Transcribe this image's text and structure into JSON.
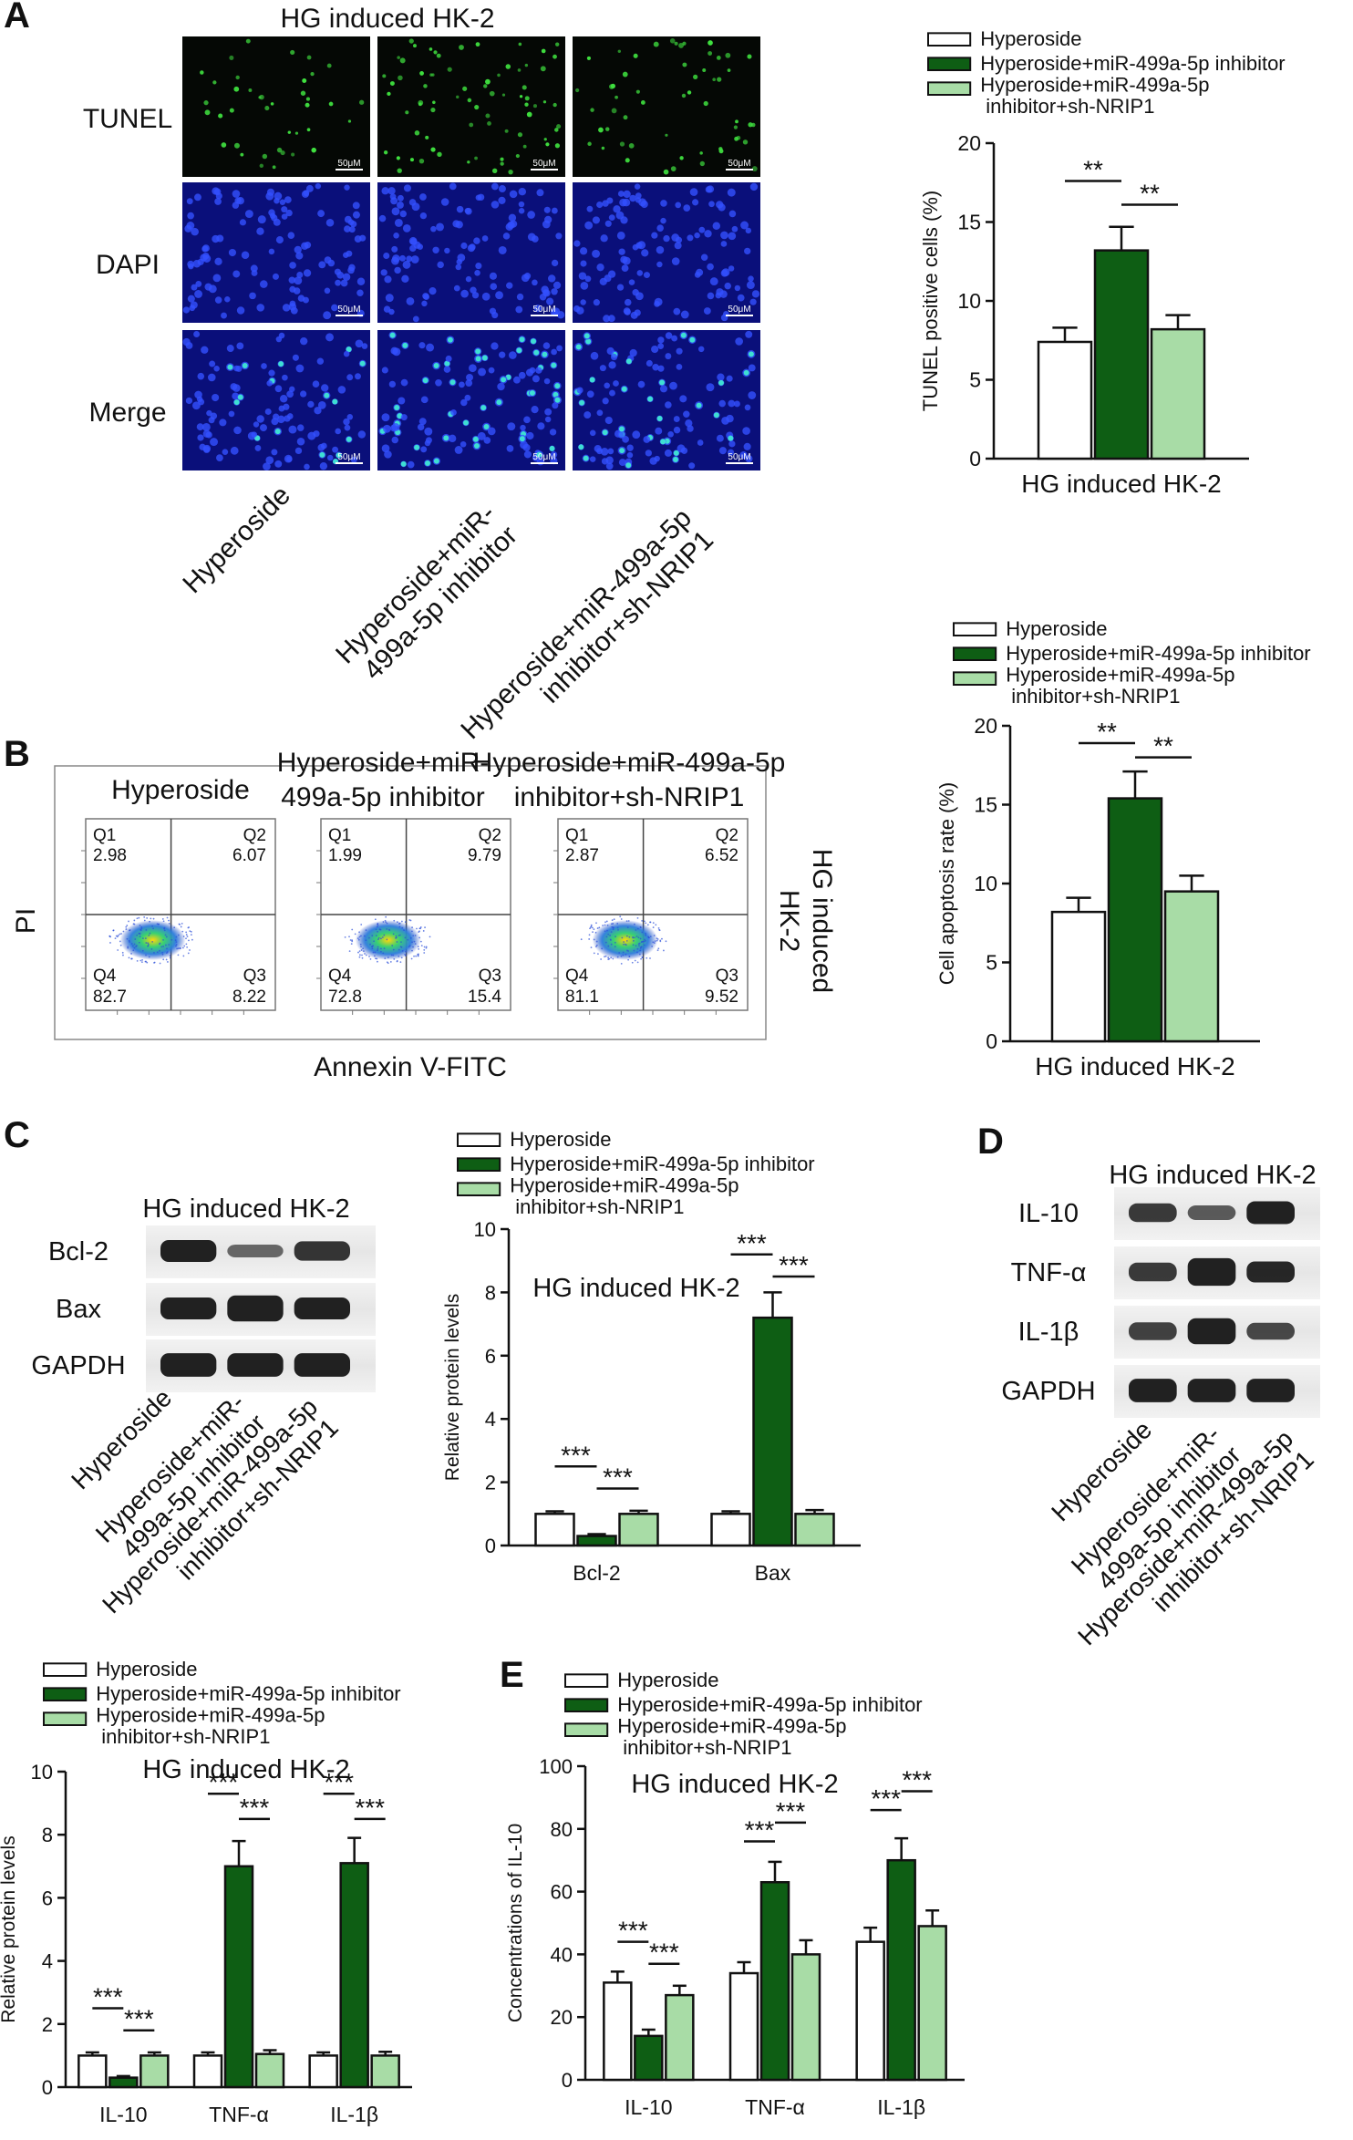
{
  "colors": {
    "hyperoside": "#ffffff",
    "inhibitor": "#0e5e14",
    "sh": "#a8dca6",
    "outline": "#111111"
  },
  "legend": {
    "hyperoside": "Hyperoside",
    "inhibitor": "Hyperoside+miR-499a-5p inhibitor",
    "sh_line1": "Hyperoside+miR-499a-5p",
    "sh_line2": "inhibitor+sh-NRIP1"
  },
  "panelA": {
    "letter": "A",
    "title": "HG induced HK-2",
    "rows": [
      "TUNEL",
      "DAPI",
      "Merge"
    ],
    "scalebar": "50μM",
    "groups": [
      {
        "lines": [
          "Hyperoside"
        ]
      },
      {
        "lines": [
          "Hyperoside+miR-",
          "499a-5p inhibitor"
        ]
      },
      {
        "lines": [
          "Hyperoside+miR-499a-5p",
          "inhibitor+sh-NRIP1"
        ]
      }
    ]
  },
  "panelB": {
    "letter": "B",
    "side_label_line1": "HG induced",
    "side_label_line2": "HK-2",
    "ylabel": "PI",
    "xlabel": "Annexin V-FITC",
    "plots": [
      {
        "title_lines": [
          "Hyperoside"
        ],
        "q1": "2.98",
        "q2": "6.07",
        "q3": "8.22",
        "q4": "82.7"
      },
      {
        "title_lines": [
          "Hyperoside+miR-",
          "499a-5p inhibitor"
        ],
        "q1": "1.99",
        "q2": "9.79",
        "q3": "15.4",
        "q4": "72.8"
      },
      {
        "title_lines": [
          "Hyperoside+miR-499a-5p",
          "inhibitor+sh-NRIP1"
        ],
        "q1": "2.87",
        "q2": "6.52",
        "q3": "9.52",
        "q4": "81.1"
      }
    ],
    "quadrants": {
      "q1": "Q1",
      "q2": "Q2",
      "q3": "Q3",
      "q4": "Q4"
    }
  },
  "panelC": {
    "letter": "C",
    "blot_title": "HG induced HK-2",
    "bands": [
      "Bcl-2",
      "Bax",
      "GAPDH"
    ],
    "lanes": [
      "Hyperoside",
      "Hyperoside+miR-|499a-5p inhibitor",
      "Hyperoside+miR-499a-5p|inhibitor+sh-NRIP1"
    ]
  },
  "panelD": {
    "letter": "D",
    "blot_title": "HG induced HK-2",
    "bands": [
      "IL-10",
      "TNF-α",
      "IL-1β",
      "GAPDH"
    ],
    "lanes": [
      "Hyperoside",
      "Hyperoside+miR-|499a-5p inhibitor",
      "Hyperoside+miR-499a-5p|inhibitor+sh-NRIP1"
    ]
  },
  "panelE": {
    "letter": "E"
  },
  "chart_data": [
    {
      "id": "tunel",
      "type": "bar",
      "ylabel": "TUNEL positive cells (%)",
      "xlabel": "HG induced HK-2",
      "ylim": [
        0,
        20
      ],
      "ticks": [
        0,
        5,
        10,
        15,
        20
      ],
      "categories": [
        ""
      ],
      "series": [
        {
          "name": "Hyperoside",
          "values": [
            7.4
          ],
          "errors": [
            0.9
          ]
        },
        {
          "name": "Hyperoside+miR-499a-5p inhibitor",
          "values": [
            13.2
          ],
          "errors": [
            1.5
          ]
        },
        {
          "name": "Hyperoside+miR-499a-5p inhibitor+sh-NRIP1",
          "values": [
            8.2
          ],
          "errors": [
            0.9
          ]
        }
      ],
      "significance": [
        {
          "cat": 0,
          "from": 0,
          "to": 1,
          "label": "**",
          "y": 17.6
        },
        {
          "cat": 0,
          "from": 1,
          "to": 2,
          "label": "**",
          "y": 16.1
        }
      ]
    },
    {
      "id": "apoptosis",
      "type": "bar",
      "ylabel": "Cell apoptosis rate (%)",
      "xlabel": "HG induced HK-2",
      "ylim": [
        0,
        20
      ],
      "ticks": [
        0,
        5,
        10,
        15,
        20
      ],
      "categories": [
        ""
      ],
      "series": [
        {
          "name": "Hyperoside",
          "values": [
            8.2
          ],
          "errors": [
            0.9
          ]
        },
        {
          "name": "Hyperoside+miR-499a-5p inhibitor",
          "values": [
            15.4
          ],
          "errors": [
            1.7
          ]
        },
        {
          "name": "Hyperoside+miR-499a-5p inhibitor+sh-NRIP1",
          "values": [
            9.5
          ],
          "errors": [
            1.0
          ]
        }
      ],
      "significance": [
        {
          "cat": 0,
          "from": 0,
          "to": 1,
          "label": "**",
          "y": 18.9
        },
        {
          "cat": 0,
          "from": 1,
          "to": 2,
          "label": "**",
          "y": 18.0
        }
      ]
    },
    {
      "id": "c_protein",
      "type": "bar",
      "title": "HG induced HK-2",
      "ylabel": "Relative protein levels",
      "xlabel": "",
      "ylim": [
        0,
        10
      ],
      "ticks": [
        0,
        2,
        4,
        6,
        8,
        10
      ],
      "categories": [
        "Bcl-2",
        "Bax"
      ],
      "series": [
        {
          "name": "Hyperoside",
          "values": [
            1.0,
            1.0
          ],
          "errors": [
            0.08,
            0.08
          ]
        },
        {
          "name": "Hyperoside+miR-499a-5p inhibitor",
          "values": [
            0.3,
            7.2
          ],
          "errors": [
            0.06,
            0.8
          ]
        },
        {
          "name": "Hyperoside+miR-499a-5p inhibitor+sh-NRIP1",
          "values": [
            1.0,
            1.0
          ],
          "errors": [
            0.1,
            0.12
          ]
        }
      ],
      "significance": [
        {
          "cat": 0,
          "from": 0,
          "to": 1,
          "label": "***",
          "y": 2.5
        },
        {
          "cat": 0,
          "from": 1,
          "to": 2,
          "label": "***",
          "y": 1.8
        },
        {
          "cat": 1,
          "from": 0,
          "to": 1,
          "label": "***",
          "y": 9.2
        },
        {
          "cat": 1,
          "from": 1,
          "to": 2,
          "label": "***",
          "y": 8.5
        }
      ]
    },
    {
      "id": "d_protein",
      "type": "bar",
      "title": "HG induced HK-2",
      "ylabel": "Relative protein levels",
      "xlabel": "",
      "ylim": [
        0,
        10
      ],
      "ticks": [
        0,
        2,
        4,
        6,
        8,
        10
      ],
      "categories": [
        "IL-10",
        "TNF-α",
        "IL-1β"
      ],
      "series": [
        {
          "name": "Hyperoside",
          "values": [
            1.0,
            1.0,
            1.0
          ],
          "errors": [
            0.1,
            0.1,
            0.1
          ]
        },
        {
          "name": "Hyperoside+miR-499a-5p inhibitor",
          "values": [
            0.3,
            7.0,
            7.1
          ],
          "errors": [
            0.05,
            0.8,
            0.8
          ]
        },
        {
          "name": "Hyperoside+miR-499a-5p inhibitor+sh-NRIP1",
          "values": [
            1.0,
            1.05,
            1.0
          ],
          "errors": [
            0.1,
            0.12,
            0.12
          ]
        }
      ],
      "significance": [
        {
          "cat": 0,
          "from": 0,
          "to": 1,
          "label": "***",
          "y": 2.5
        },
        {
          "cat": 0,
          "from": 1,
          "to": 2,
          "label": "***",
          "y": 1.8
        },
        {
          "cat": 1,
          "from": 0,
          "to": 1,
          "label": "***",
          "y": 9.3
        },
        {
          "cat": 1,
          "from": 1,
          "to": 2,
          "label": "***",
          "y": 8.5
        },
        {
          "cat": 2,
          "from": 0,
          "to": 1,
          "label": "***",
          "y": 9.3
        },
        {
          "cat": 2,
          "from": 1,
          "to": 2,
          "label": "***",
          "y": 8.5
        }
      ]
    },
    {
      "id": "e_conc",
      "type": "bar",
      "title": "HG induced HK-2",
      "ylabel": "Concentrations of IL-10",
      "xlabel": "",
      "ylim": [
        0,
        100
      ],
      "ticks": [
        0,
        20,
        40,
        60,
        80,
        100
      ],
      "categories": [
        "IL-10",
        "TNF-α",
        "IL-1β"
      ],
      "series": [
        {
          "name": "Hyperoside",
          "values": [
            31,
            34,
            44
          ],
          "errors": [
            3.5,
            3.5,
            4.5
          ]
        },
        {
          "name": "Hyperoside+miR-499a-5p inhibitor",
          "values": [
            14,
            63,
            70
          ],
          "errors": [
            2,
            6.5,
            7
          ]
        },
        {
          "name": "Hyperoside+miR-499a-5p inhibitor+sh-NRIP1",
          "values": [
            27,
            40,
            49
          ],
          "errors": [
            3,
            4.5,
            5
          ]
        }
      ],
      "significance": [
        {
          "cat": 0,
          "from": 0,
          "to": 1,
          "label": "***",
          "y": 44
        },
        {
          "cat": 0,
          "from": 1,
          "to": 2,
          "label": "***",
          "y": 37
        },
        {
          "cat": 1,
          "from": 0,
          "to": 1,
          "label": "***",
          "y": 76
        },
        {
          "cat": 1,
          "from": 1,
          "to": 2,
          "label": "***",
          "y": 82
        },
        {
          "cat": 2,
          "from": 0,
          "to": 1,
          "label": "***",
          "y": 86
        },
        {
          "cat": 2,
          "from": 1,
          "to": 2,
          "label": "***",
          "y": 92
        }
      ]
    }
  ]
}
